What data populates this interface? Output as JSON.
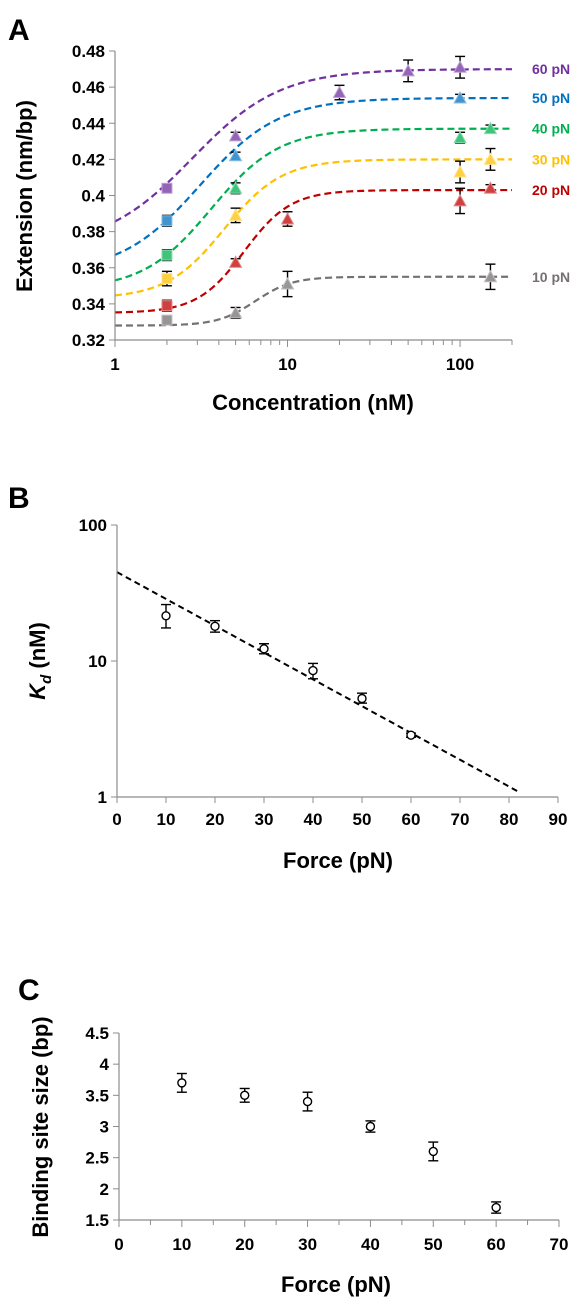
{
  "chart_data": [
    {
      "panel": "A",
      "type": "scatter",
      "xlabel": "Concentration (nM)",
      "ylabel": "Extension (nm/bp)",
      "x_scale": "log",
      "xlim": [
        1,
        200
      ],
      "ylim": [
        0.32,
        0.48
      ],
      "x_ticks": [
        "1",
        "10",
        "100"
      ],
      "y_ticks": [
        "0.32",
        "0.34",
        "0.36",
        "0.38",
        "0.4",
        "0.42",
        "0.44",
        "0.46",
        "0.48"
      ],
      "series": [
        {
          "name": "60 pN",
          "color": "#7030a0",
          "marker": "triangle",
          "fit": {
            "low": 0.371,
            "high": 0.47,
            "kd": 2.8,
            "n": 1.7
          },
          "points": [
            {
              "x": 2,
              "y": 0.404,
              "err": 0.002,
              "marker": "square"
            },
            {
              "x": 5,
              "y": 0.433,
              "err": 0.002
            },
            {
              "x": 20,
              "y": 0.457,
              "err": 0.004
            },
            {
              "x": 50,
              "y": 0.469,
              "err": 0.006
            },
            {
              "x": 100,
              "y": 0.471,
              "err": 0.006
            }
          ]
        },
        {
          "name": "50 pN",
          "color": "#0070c0",
          "marker": "triangle",
          "fit": {
            "low": 0.357,
            "high": 0.454,
            "kd": 3.1,
            "n": 1.9
          },
          "points": [
            {
              "x": 2,
              "y": 0.386,
              "err": 0.003,
              "marker": "square"
            },
            {
              "x": 5,
              "y": 0.422,
              "err": 0.002
            },
            {
              "x": 100,
              "y": 0.454,
              "err": 0.002
            }
          ]
        },
        {
          "name": "40 pN",
          "color": "#00b050",
          "marker": "triangle",
          "fit": {
            "low": 0.348,
            "high": 0.437,
            "kd": 3.6,
            "n": 2.2
          },
          "points": [
            {
              "x": 2,
              "y": 0.367,
              "err": 0.003,
              "marker": "square"
            },
            {
              "x": 5,
              "y": 0.404,
              "err": 0.003
            },
            {
              "x": 100,
              "y": 0.432,
              "err": 0.003
            },
            {
              "x": 150,
              "y": 0.437,
              "err": 0.002
            }
          ]
        },
        {
          "name": "30 pN",
          "color": "#ffc000",
          "marker": "triangle",
          "fit": {
            "low": 0.343,
            "high": 0.42,
            "kd": 4.3,
            "n": 2.6
          },
          "points": [
            {
              "x": 2,
              "y": 0.354,
              "err": 0.004,
              "marker": "square"
            },
            {
              "x": 5,
              "y": 0.389,
              "err": 0.004
            },
            {
              "x": 100,
              "y": 0.413,
              "err": 0.006
            },
            {
              "x": 150,
              "y": 0.42,
              "err": 0.006
            }
          ]
        },
        {
          "name": "20 pN",
          "color": "#c00000",
          "marker": "triangle",
          "fit": {
            "low": 0.335,
            "high": 0.403,
            "kd": 5.6,
            "n": 3.2
          },
          "points": [
            {
              "x": 2,
              "y": 0.339,
              "err": 0.003,
              "marker": "square"
            },
            {
              "x": 5,
              "y": 0.363,
              "err": 0.002
            },
            {
              "x": 10,
              "y": 0.387,
              "err": 0.004
            },
            {
              "x": 100,
              "y": 0.397,
              "err": 0.007
            },
            {
              "x": 150,
              "y": 0.404,
              "err": 0.002
            }
          ]
        },
        {
          "name": "10 pN",
          "color": "#767171",
          "marker": "triangle",
          "fit": {
            "low": 0.328,
            "high": 0.355,
            "kd": 6.5,
            "n": 4
          },
          "points": [
            {
              "x": 2,
              "y": 0.331,
              "err": 0.002,
              "marker": "square"
            },
            {
              "x": 5,
              "y": 0.335,
              "err": 0.003
            },
            {
              "x": 10,
              "y": 0.351,
              "err": 0.007
            },
            {
              "x": 150,
              "y": 0.355,
              "err": 0.007
            }
          ]
        }
      ]
    },
    {
      "panel": "B",
      "type": "scatter",
      "xlabel": "Force (pN)",
      "ylabel_main": "K",
      "ylabel_sub": "d",
      "ylabel_unit": " (nM)",
      "y_scale": "log",
      "xlim": [
        0,
        90
      ],
      "ylim": [
        1,
        100
      ],
      "x_ticks": [
        "0",
        "10",
        "20",
        "30",
        "40",
        "50",
        "60",
        "70",
        "80",
        "90"
      ],
      "y_ticks": [
        "1",
        "10",
        "100"
      ],
      "points": [
        {
          "x": 10,
          "y": 21.5,
          "err_low": 17.5,
          "err_high": 26
        },
        {
          "x": 20,
          "y": 18,
          "err_low": 16.3,
          "err_high": 19.8
        },
        {
          "x": 30,
          "y": 12.3,
          "err_low": 11.3,
          "err_high": 13.4
        },
        {
          "x": 40,
          "y": 8.5,
          "err_low": 7.4,
          "err_high": 9.6
        },
        {
          "x": 50,
          "y": 5.3,
          "err_low": 4.9,
          "err_high": 5.8
        },
        {
          "x": 60,
          "y": 2.85,
          "err_low": 2.75,
          "err_high": 2.95
        }
      ],
      "fit_line": {
        "x": [
          0,
          82.2
        ],
        "y": [
          45,
          1.08
        ]
      }
    },
    {
      "panel": "C",
      "type": "scatter",
      "xlabel": "Force (pN)",
      "ylabel": "Binding site size (bp)",
      "xlim": [
        0,
        70
      ],
      "ylim": [
        1.5,
        4.5
      ],
      "x_ticks": [
        "0",
        "10",
        "20",
        "30",
        "40",
        "50",
        "60",
        "70"
      ],
      "y_ticks": [
        "1.5",
        "2",
        "2.5",
        "3",
        "3.5",
        "4",
        "4.5"
      ],
      "points": [
        {
          "x": 10,
          "y": 3.7,
          "err": 0.15
        },
        {
          "x": 20,
          "y": 3.5,
          "err": 0.11
        },
        {
          "x": 30,
          "y": 3.4,
          "err": 0.15
        },
        {
          "x": 40,
          "y": 3.0,
          "err": 0.09
        },
        {
          "x": 50,
          "y": 2.6,
          "err": 0.15
        },
        {
          "x": 60,
          "y": 1.7,
          "err": 0.09
        }
      ]
    }
  ]
}
